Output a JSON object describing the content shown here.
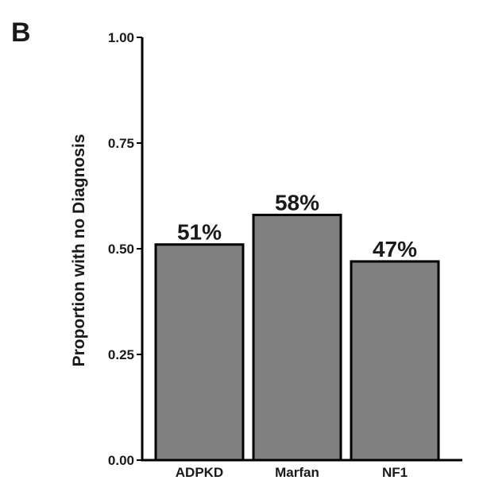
{
  "panel_label": "B",
  "colors": {
    "bar_fill": "#808080",
    "bar_stroke": "#000000",
    "text": "#1a1a1a"
  },
  "chart_data": {
    "type": "bar",
    "title": "",
    "xlabel": "",
    "ylabel": "Proportion with no Diagnosis",
    "ylim": [
      0,
      1
    ],
    "yticks": [
      "0.00",
      "0.25",
      "0.50",
      "0.75",
      "1.00"
    ],
    "categories": [
      "ADPKD",
      "Marfan",
      "NF1"
    ],
    "values": [
      0.51,
      0.58,
      0.47
    ],
    "data_labels": [
      "51%",
      "58%",
      "47%"
    ],
    "grid": false,
    "legend": "none"
  }
}
